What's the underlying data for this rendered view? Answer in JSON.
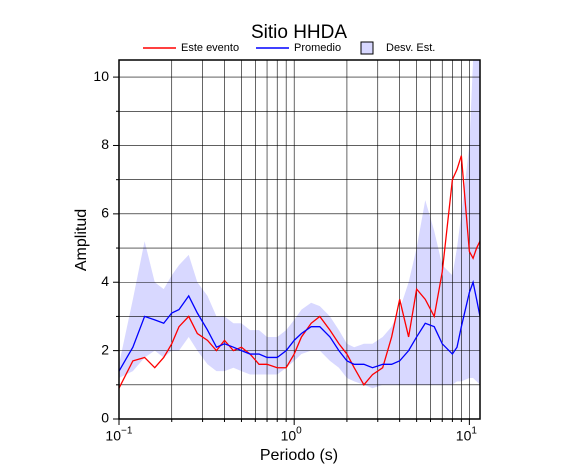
{
  "chart_data": {
    "type": "line",
    "title": "Sitio HHDA",
    "xlabel": "Periodo (s)",
    "ylabel": "Amplitud",
    "xscale": "log",
    "grid": true,
    "xlim": [
      0.1,
      11.5
    ],
    "ylim": [
      0,
      10.5
    ],
    "xticks": [
      {
        "value": 0.1,
        "label": "10",
        "exponent": "−1"
      },
      {
        "value": 1,
        "label": "10",
        "exponent": "0"
      },
      {
        "value": 10,
        "label": "10",
        "exponent": "1"
      }
    ],
    "minor_xticks": [
      0.2,
      0.3,
      0.4,
      0.5,
      0.6,
      0.7,
      0.8,
      0.9,
      2,
      3,
      4,
      5,
      6,
      7,
      8,
      9
    ],
    "yticks": [
      0,
      2,
      4,
      6,
      8,
      10
    ],
    "minor_yticks": [
      1,
      3,
      5,
      7,
      9
    ],
    "x": [
      0.1,
      0.12,
      0.14,
      0.16,
      0.18,
      0.2,
      0.22,
      0.25,
      0.28,
      0.32,
      0.36,
      0.4,
      0.45,
      0.5,
      0.56,
      0.63,
      0.7,
      0.8,
      0.9,
      1.0,
      1.1,
      1.25,
      1.4,
      1.6,
      1.8,
      2.0,
      2.2,
      2.5,
      2.8,
      3.2,
      3.6,
      4.0,
      4.5,
      5.0,
      5.6,
      6.3,
      7.0,
      8.0,
      8.5,
      9.0,
      10,
      10.5,
      11,
      11.5
    ],
    "series": [
      {
        "name": "Este evento",
        "color": "#ff0000",
        "values": [
          0.9,
          1.7,
          1.8,
          1.5,
          1.8,
          2.2,
          2.7,
          3.0,
          2.5,
          2.3,
          2.0,
          2.3,
          2.0,
          2.1,
          1.9,
          1.6,
          1.6,
          1.5,
          1.5,
          1.9,
          2.4,
          2.8,
          3.0,
          2.6,
          2.2,
          1.9,
          1.5,
          1.0,
          1.3,
          1.5,
          2.4,
          3.5,
          2.4,
          3.8,
          3.5,
          3.0,
          4.3,
          7.0,
          7.3,
          7.7,
          4.9,
          4.7,
          5.0,
          5.2
        ]
      },
      {
        "name": "Promedio",
        "color": "#0000ff",
        "values": [
          1.4,
          2.1,
          3.0,
          2.9,
          2.8,
          3.1,
          3.2,
          3.6,
          3.1,
          2.6,
          2.1,
          2.2,
          2.1,
          2.0,
          1.9,
          1.9,
          1.8,
          1.8,
          2.0,
          2.3,
          2.5,
          2.7,
          2.7,
          2.4,
          2.0,
          1.7,
          1.6,
          1.6,
          1.5,
          1.6,
          1.6,
          1.7,
          2.0,
          2.4,
          2.8,
          2.7,
          2.2,
          1.9,
          2.1,
          2.7,
          3.7,
          4.0,
          3.5,
          3.0
        ]
      },
      {
        "name": "Desv. Est.",
        "color": "#d8d8ff",
        "lower": [
          1.2,
          1.4,
          1.8,
          2.0,
          1.8,
          2.0,
          2.0,
          2.4,
          2.0,
          1.6,
          1.4,
          1.4,
          1.5,
          1.4,
          1.3,
          1.3,
          1.3,
          1.3,
          1.5,
          1.7,
          1.9,
          2.0,
          2.0,
          1.7,
          1.5,
          1.2,
          1.1,
          1.0,
          0.9,
          1.0,
          1.0,
          1.0,
          1.0,
          1.0,
          1.0,
          1.0,
          1.0,
          1.0,
          1.1,
          1.1,
          1.2,
          1.2,
          1.1,
          1.0
        ],
        "upper": [
          1.6,
          3.5,
          5.2,
          4.0,
          3.8,
          4.2,
          4.5,
          4.8,
          4.0,
          3.6,
          3.0,
          3.0,
          2.8,
          2.8,
          2.6,
          2.6,
          2.4,
          2.4,
          2.6,
          2.9,
          3.2,
          3.4,
          3.3,
          3.0,
          2.6,
          2.2,
          2.1,
          2.2,
          2.2,
          2.4,
          2.7,
          3.2,
          4.0,
          5.0,
          6.4,
          5.5,
          4.5,
          4.2,
          5.0,
          6.0,
          8.0,
          10.5,
          10.5,
          10.5
        ]
      }
    ]
  }
}
